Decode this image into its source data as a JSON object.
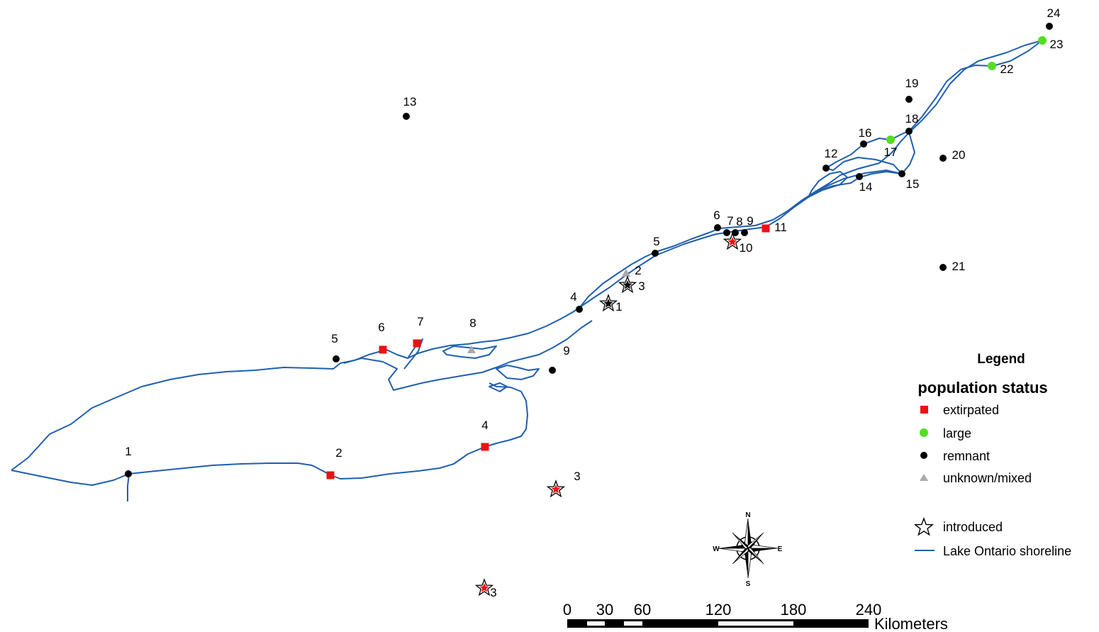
{
  "colors": {
    "shoreline": "#1f5fb0",
    "extirpated": "#ee1111",
    "large": "#55dd22",
    "remnant": "#000000",
    "unknown": "#aaaaaa",
    "star_outline": "#000000"
  },
  "sites": [
    {
      "label": "1",
      "status": "remnant"
    },
    {
      "label": "2",
      "status": "extirpated"
    },
    {
      "label": "4",
      "status": "extirpated"
    },
    {
      "label": "3",
      "status": "extirpated",
      "introduced": true
    },
    {
      "label": "3",
      "status": "extirpated",
      "introduced": true
    },
    {
      "label": "5",
      "status": "remnant"
    },
    {
      "label": "6",
      "status": "extirpated"
    },
    {
      "label": "7",
      "status": "extirpated"
    },
    {
      "label": "8",
      "status": "unknown"
    },
    {
      "label": "9",
      "status": "remnant"
    },
    {
      "label": "13",
      "status": "remnant"
    },
    {
      "label": "4",
      "status": "remnant"
    },
    {
      "label": "1",
      "status": "remnant",
      "introduced": true
    },
    {
      "label": "2",
      "status": "unknown"
    },
    {
      "label": "3",
      "status": "remnant",
      "introduced": true
    },
    {
      "label": "5",
      "status": "remnant"
    },
    {
      "label": "6",
      "status": "remnant"
    },
    {
      "label": "7",
      "status": "remnant"
    },
    {
      "label": "8",
      "status": "remnant"
    },
    {
      "label": "9",
      "status": "remnant"
    },
    {
      "label": "10",
      "status": "extirpated",
      "introduced": true
    },
    {
      "label": "11",
      "status": "extirpated"
    },
    {
      "label": "12",
      "status": "remnant"
    },
    {
      "label": "14",
      "status": "remnant"
    },
    {
      "label": "15",
      "status": "remnant"
    },
    {
      "label": "16",
      "status": "remnant"
    },
    {
      "label": "17",
      "status": "large"
    },
    {
      "label": "18",
      "status": "remnant"
    },
    {
      "label": "19",
      "status": "remnant"
    },
    {
      "label": "20",
      "status": "remnant"
    },
    {
      "label": "21",
      "status": "remnant"
    },
    {
      "label": "22",
      "status": "large"
    },
    {
      "label": "23",
      "status": "large"
    },
    {
      "label": "24",
      "status": "remnant"
    }
  ],
  "legend": {
    "title": "Legend",
    "subtitle": "population status",
    "items": [
      {
        "label": "extirpated",
        "symbol": "square",
        "color": "#ee1111"
      },
      {
        "label": "large",
        "symbol": "circle",
        "color": "#55dd22"
      },
      {
        "label": "remnant",
        "symbol": "circle",
        "color": "#000000"
      },
      {
        "label": "unknown/mixed",
        "symbol": "triangle",
        "color": "#aaaaaa"
      }
    ],
    "introduced": "introduced",
    "shoreline": "Lake Ontario shoreline"
  },
  "compass": {
    "n": "N",
    "s": "S",
    "e": "E",
    "w": "W"
  },
  "scale": {
    "ticks": [
      "0",
      "30",
      "60",
      "120",
      "180",
      "240"
    ],
    "unit": "Kilometers"
  }
}
